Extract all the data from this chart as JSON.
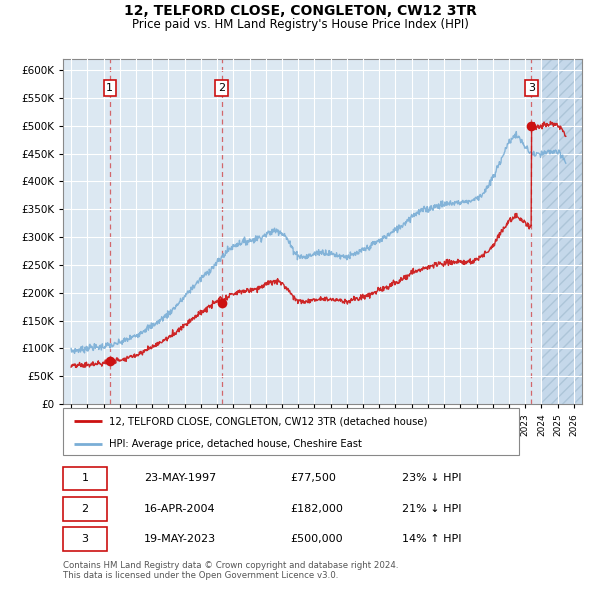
{
  "title": "12, TELFORD CLOSE, CONGLETON, CW12 3TR",
  "subtitle": "Price paid vs. HM Land Registry's House Price Index (HPI)",
  "ylim": [
    0,
    620000
  ],
  "yticks": [
    0,
    50000,
    100000,
    150000,
    200000,
    250000,
    300000,
    350000,
    400000,
    450000,
    500000,
    550000,
    600000
  ],
  "xlim_start": 1994.5,
  "xlim_end": 2026.5,
  "sale_dates": [
    1997.386,
    2004.286,
    2023.381
  ],
  "sale_prices": [
    77500,
    182000,
    500000
  ],
  "sale_labels": [
    "1",
    "2",
    "3"
  ],
  "hpi_color": "#7aaed6",
  "price_color": "#cc1111",
  "background_plot": "#dce8f2",
  "background_hatch_color": "#c5d8ea",
  "grid_color": "#ffffff",
  "legend_entries": [
    "12, TELFORD CLOSE, CONGLETON, CW12 3TR (detached house)",
    "HPI: Average price, detached house, Cheshire East"
  ],
  "table_rows": [
    [
      "1",
      "23-MAY-1997",
      "£77,500",
      "23% ↓ HPI"
    ],
    [
      "2",
      "16-APR-2004",
      "£182,000",
      "21% ↓ HPI"
    ],
    [
      "3",
      "19-MAY-2023",
      "£500,000",
      "14% ↑ HPI"
    ]
  ],
  "footnote": "Contains HM Land Registry data © Crown copyright and database right 2024.\nThis data is licensed under the Open Government Licence v3.0.",
  "hatch_start": 2024.0,
  "label_box_color": "#ffffff",
  "label_box_edge": "#cc1111"
}
